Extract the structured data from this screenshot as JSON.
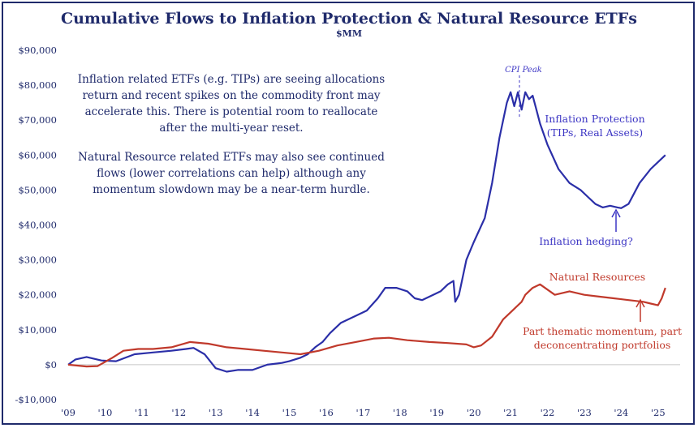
{
  "chart_data": {
    "type": "line",
    "title": "Cumulative Flows to Inflation Protection & Natural Resource ETFs",
    "subtitle": "$MM",
    "xlabel": "",
    "ylabel": "",
    "ylim": [
      -10000,
      90000
    ],
    "xlim": [
      2009,
      2025.6
    ],
    "y_ticks": [
      -10000,
      0,
      10000,
      20000,
      30000,
      40000,
      50000,
      60000,
      70000,
      80000,
      90000
    ],
    "y_tick_labels": [
      "-$10,000",
      "$0",
      "$10,000",
      "$20,000",
      "$30,000",
      "$40,000",
      "$50,000",
      "$60,000",
      "$70,000",
      "$80,000",
      "$90,000"
    ],
    "x_ticks": [
      2009,
      2010,
      2011,
      2012,
      2013,
      2014,
      2015,
      2016,
      2017,
      2018,
      2019,
      2020,
      2021,
      2022,
      2023,
      2024,
      2025
    ],
    "x_tick_labels": [
      "'09",
      "'10",
      "'11",
      "'12",
      "'13",
      "'14",
      "'15",
      "'16",
      "'17",
      "'18",
      "'19",
      "'20",
      "'21",
      "'22",
      "'23",
      "'24",
      "'25"
    ],
    "grid": false,
    "series": [
      {
        "name": "Inflation Protection (TIPs, Real Assets)",
        "color": "#2b2fa8",
        "x": [
          2009.0,
          2009.2,
          2009.5,
          2009.9,
          2010.3,
          2010.8,
          2011.3,
          2011.8,
          2012.2,
          2012.4,
          2012.7,
          2013.0,
          2013.3,
          2013.6,
          2014.0,
          2014.4,
          2014.8,
          2015.0,
          2015.3,
          2015.5,
          2015.7,
          2015.9,
          2016.1,
          2016.4,
          2016.8,
          2017.1,
          2017.4,
          2017.6,
          2017.9,
          2018.2,
          2018.4,
          2018.6,
          2018.9,
          2019.1,
          2019.3,
          2019.45,
          2019.5,
          2019.6,
          2019.8,
          2020.0,
          2020.3,
          2020.5,
          2020.7,
          2020.9,
          2021.0,
          2021.1,
          2021.2,
          2021.3,
          2021.4,
          2021.5,
          2021.6,
          2021.7,
          2021.8,
          2022.0,
          2022.3,
          2022.6,
          2022.9,
          2023.1,
          2023.3,
          2023.5,
          2023.7,
          2023.9,
          2024.0,
          2024.2,
          2024.5,
          2024.8,
          2025.0,
          2025.2
        ],
        "y": [
          0,
          1500,
          2200,
          1200,
          1000,
          3000,
          3500,
          4000,
          4500,
          4800,
          3000,
          -1000,
          -2000,
          -1500,
          -1500,
          0,
          500,
          1000,
          2000,
          3000,
          5000,
          6500,
          9000,
          12000,
          14000,
          15500,
          19000,
          22000,
          22000,
          21000,
          19000,
          18500,
          20000,
          21000,
          23000,
          24000,
          18000,
          20000,
          30000,
          35000,
          42000,
          52000,
          65000,
          75000,
          78000,
          74000,
          78000,
          73000,
          78000,
          76000,
          77000,
          73000,
          69000,
          63000,
          56000,
          52000,
          50000,
          48000,
          46000,
          45000,
          45500,
          45000,
          44800,
          46000,
          52000,
          56000,
          58000,
          60000
        ]
      },
      {
        "name": "Natural Resources",
        "color": "#c0392b",
        "x": [
          2009.0,
          2009.5,
          2009.8,
          2010.2,
          2010.5,
          2010.9,
          2011.3,
          2011.8,
          2012.3,
          2012.8,
          2013.3,
          2013.8,
          2014.3,
          2014.8,
          2015.3,
          2015.8,
          2016.3,
          2016.8,
          2017.3,
          2017.7,
          2018.2,
          2018.8,
          2019.3,
          2019.8,
          2020.0,
          2020.2,
          2020.5,
          2020.8,
          2021.0,
          2021.3,
          2021.4,
          2021.6,
          2021.8,
          2022.2,
          2022.6,
          2023.0,
          2023.4,
          2023.8,
          2024.2,
          2024.6,
          2024.8,
          2025.0,
          2025.1,
          2025.2
        ],
        "y": [
          0,
          -500,
          -400,
          2000,
          4000,
          4500,
          4500,
          5000,
          6500,
          6000,
          5000,
          4500,
          4000,
          3500,
          3000,
          4000,
          5500,
          6500,
          7500,
          7700,
          7000,
          6500,
          6200,
          5800,
          5000,
          5500,
          8000,
          13000,
          15000,
          18000,
          20000,
          22000,
          23000,
          20000,
          21000,
          20000,
          19500,
          19000,
          18500,
          18000,
          17500,
          17000,
          19000,
          22000
        ]
      }
    ]
  },
  "annotations": {
    "note_lines_1": [
      "Inflation related ETFs (e.g. TIPs) are seeing allocations",
      "return and recent spikes on the commodity front may",
      "accelerate this. There is potential room to reallocate",
      "after the multi-year reset."
    ],
    "note_lines_2": [
      "Natural Resource related ETFs may also see continued",
      "flows (lower correlations can help) although any",
      "momentum slowdown may be a near-term hurdle."
    ],
    "cpi_peak": "CPI Peak",
    "inflation_label_1": "Inflation Protection",
    "inflation_label_2": "(TIPs, Real Assets)",
    "hedging_label": "Inflation hedging?",
    "natres_label": "Natural Resources",
    "thematic_label_1": "Part thematic momentum, part",
    "thematic_label_2": "deconcentrating portfolios"
  }
}
